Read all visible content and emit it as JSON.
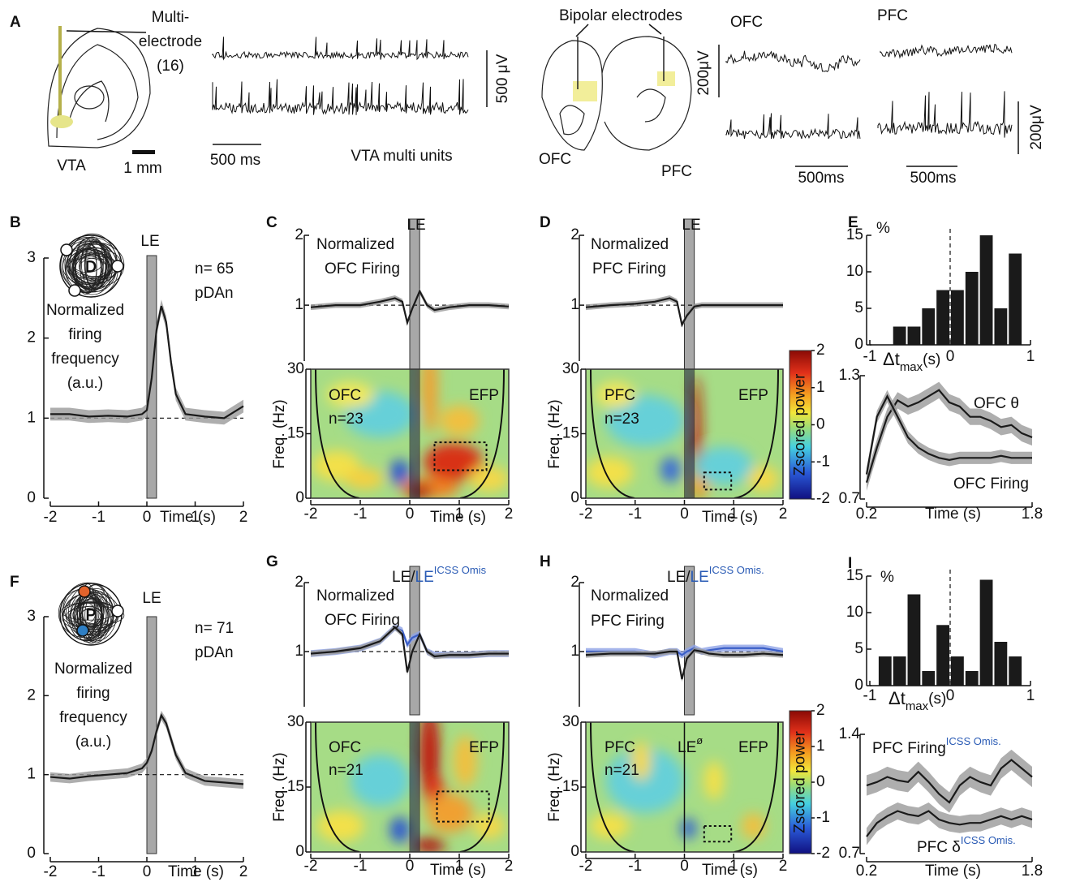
{
  "figure_a": {
    "panel": "A",
    "electrode": [
      "Multi-",
      "electrode",
      "(16)"
    ],
    "region": "VTA",
    "scale_mm": "1 mm",
    "scale_uv": "500 μV",
    "scale_ms": "500 ms",
    "units": "VTA multi units",
    "bipolar": "Bipolar electrodes",
    "slice_left": "OFC",
    "slice_right": "PFC",
    "trace_left": "OFC",
    "trace_right": "PFC",
    "scale_uv_top": "200μV",
    "scale_uv_bottom": "200μV",
    "scale_ms_left": "500ms",
    "scale_ms_right": "500ms"
  },
  "chart_data": [
    {
      "type": "line",
      "panel": "B",
      "event_label": "LE",
      "event": [
        0,
        0.2
      ],
      "annotations": [
        "n= 65",
        "pDAn"
      ],
      "ylabel": [
        "Normalized",
        "firing",
        "frequency",
        "(a.u.)"
      ],
      "xlabel": "Time (s)",
      "icon_label": "D",
      "xlim": [
        -2,
        2
      ],
      "xticks": [
        -2,
        -1,
        0,
        1,
        2
      ],
      "ylim": [
        0,
        3
      ],
      "yticks": [
        0,
        1,
        2,
        3
      ],
      "hline": 1,
      "x": [
        -2,
        -1.6,
        -1.2,
        -0.8,
        -0.4,
        -0.1,
        0,
        0.1,
        0.2,
        0.3,
        0.4,
        0.5,
        0.6,
        0.8,
        1.2,
        1.6,
        2
      ],
      "series": [
        {
          "color": "#1a1a1a",
          "band_color": "#9a9a9a",
          "error": 0.08,
          "values": [
            1.05,
            1.05,
            1.02,
            1.03,
            1.02,
            1.05,
            1.1,
            1.5,
            2.1,
            2.4,
            2.2,
            1.7,
            1.3,
            1.05,
            1.02,
            1.0,
            1.15
          ]
        }
      ]
    },
    {
      "type": "line",
      "panel": "C",
      "event_label": "LE",
      "event": [
        0,
        0.2
      ],
      "annotations": [
        "Normalized",
        "OFC Firing"
      ],
      "xlim": [
        -2,
        2
      ],
      "ylim": [
        0.2,
        2
      ],
      "yticks": [
        1,
        2
      ],
      "hline": 1,
      "x": [
        -2,
        -1.5,
        -1,
        -0.6,
        -0.3,
        -0.15,
        -0.05,
        0.05,
        0.2,
        0.35,
        0.5,
        0.8,
        1.2,
        1.6,
        2
      ],
      "series": [
        {
          "color": "#1a1a1a",
          "band_color": "#9a9a9a",
          "error": 0.04,
          "values": [
            0.97,
            1.0,
            1.0,
            1.05,
            1.1,
            1.05,
            0.75,
            0.95,
            1.2,
            1.0,
            0.93,
            0.97,
            1.0,
            1.0,
            0.98
          ]
        }
      ]
    },
    {
      "type": "heatmap",
      "annotations": [
        "OFC",
        "n=23",
        "EFP"
      ],
      "ylabel": "Freq. (Hz)",
      "xlabel": "Time (s)",
      "xlim": [
        -2,
        2
      ],
      "xticks": [
        -2,
        -1,
        0,
        1,
        2
      ],
      "ylim": [
        0,
        30
      ],
      "yticks": [
        0,
        15,
        30
      ],
      "event": [
        0,
        0.2
      ],
      "box": {
        "x": [
          0.5,
          1.55
        ],
        "y": [
          6.5,
          13
        ]
      }
    },
    {
      "type": "line",
      "panel": "D",
      "event_label": "LE",
      "event": [
        0,
        0.2
      ],
      "annotations": [
        "Normalized",
        "PFC Firing"
      ],
      "xlim": [
        -2,
        2
      ],
      "ylim": [
        0.2,
        2
      ],
      "yticks": [
        1,
        2
      ],
      "hline": 1,
      "x": [
        -2,
        -1.5,
        -1,
        -0.6,
        -0.3,
        -0.15,
        -0.05,
        0.05,
        0.2,
        0.35,
        0.5,
        0.8,
        1.2,
        1.6,
        2
      ],
      "series": [
        {
          "color": "#1a1a1a",
          "band_color": "#9a9a9a",
          "error": 0.04,
          "values": [
            0.97,
            1.0,
            1.02,
            1.05,
            1.1,
            1.05,
            0.72,
            0.85,
            0.98,
            1.0,
            1.0,
            1.0,
            1.0,
            1.0,
            1.0
          ]
        }
      ]
    },
    {
      "type": "heatmap",
      "annotations": [
        "PFC",
        "n=23",
        "EFP"
      ],
      "ylabel": "Freq. (Hz)",
      "xlabel": "Time (s)",
      "xlim": [
        -2,
        2
      ],
      "xticks": [
        -2,
        -1,
        0,
        1,
        2
      ],
      "ylim": [
        0,
        30
      ],
      "yticks": [
        0,
        15,
        30
      ],
      "event": [
        0,
        0.2
      ],
      "box": {
        "x": [
          0.4,
          0.95
        ],
        "y": [
          2,
          6
        ]
      },
      "zlabel": "Zscored power",
      "zlim": [
        -2,
        2
      ],
      "zticks": [
        -2,
        -1,
        0,
        1,
        2
      ]
    },
    {
      "type": "histogram",
      "panel": "E",
      "ylabel": "%",
      "xlabel": "Δt",
      "xlabel_sub": "max",
      "xlabel_end": "(s)",
      "xlim": [
        -1,
        1
      ],
      "xticks": [
        -1,
        0,
        1
      ],
      "ylim": [
        0,
        15
      ],
      "yticks": [
        0,
        5,
        10,
        15
      ],
      "vline": 0,
      "color": "#1a1a1a",
      "bins": [
        -0.72,
        -0.54,
        -0.36,
        -0.18,
        0,
        0.18,
        0.36,
        0.54,
        0.72,
        0.9
      ],
      "values": [
        2.5,
        2.5,
        5,
        7.5,
        7.5,
        10,
        15,
        5,
        12.5
      ]
    },
    {
      "type": "line",
      "xlabel": "Time (s)",
      "xlim": [
        0.2,
        1.8
      ],
      "xticks": [
        0.2,
        1.8
      ],
      "ylim": [
        0.7,
        1.3
      ],
      "yticks": [
        0.7,
        1.3
      ],
      "x": [
        0.2,
        0.3,
        0.4,
        0.5,
        0.6,
        0.7,
        0.8,
        0.9,
        1.0,
        1.1,
        1.2,
        1.3,
        1.4,
        1.5,
        1.6,
        1.7,
        1.8
      ],
      "series": [
        {
          "name": "OFC θ",
          "color": "#1a1a1a",
          "band_color": "#9a9a9a",
          "error": 0.04,
          "values": [
            0.78,
            0.95,
            1.1,
            1.18,
            1.15,
            1.17,
            1.2,
            1.23,
            1.17,
            1.15,
            1.1,
            1.1,
            1.08,
            1.05,
            1.06,
            1.02,
            1.0
          ]
        },
        {
          "name": "OFC Firing",
          "color": "#1a1a1a",
          "band_color": "#9a9a9a",
          "error": 0.03,
          "values": [
            0.82,
            1.1,
            1.2,
            1.1,
            1.0,
            0.95,
            0.92,
            0.9,
            0.89,
            0.9,
            0.9,
            0.9,
            0.9,
            0.91,
            0.9,
            0.9,
            0.9
          ]
        }
      ]
    },
    {
      "type": "line",
      "panel": "F",
      "event_label": "LE",
      "event": [
        0,
        0.2
      ],
      "annotations": [
        "n= 71",
        "pDAn"
      ],
      "ylabel": [
        "Normalized",
        "firing",
        "frequency",
        "(a.u.)"
      ],
      "xlabel": "Time (s)",
      "icon_label": "P",
      "xlim": [
        -2,
        2
      ],
      "xticks": [
        -2,
        -1,
        0,
        1,
        2
      ],
      "ylim": [
        0,
        3
      ],
      "yticks": [
        0,
        1,
        2,
        3
      ],
      "hline": 1,
      "x": [
        -2,
        -1.6,
        -1.2,
        -0.8,
        -0.4,
        -0.1,
        0,
        0.1,
        0.2,
        0.3,
        0.4,
        0.5,
        0.6,
        0.8,
        1.2,
        1.6,
        2
      ],
      "series": [
        {
          "color": "#1a1a1a",
          "band_color": "#9a9a9a",
          "error": 0.06,
          "values": [
            0.97,
            0.95,
            0.98,
            1.0,
            1.02,
            1.08,
            1.15,
            1.3,
            1.55,
            1.75,
            1.65,
            1.45,
            1.25,
            1.02,
            0.92,
            0.9,
            0.88
          ]
        }
      ]
    },
    {
      "type": "line",
      "panel": "G",
      "event_label": "LE/",
      "event_label2": "LE",
      "event_label2_sup": "ICSS Omis",
      "event_label2_color": "#2a5bb5",
      "event": [
        0,
        0.2
      ],
      "annotations": [
        "Normalized",
        "OFC Firing"
      ],
      "xlim": [
        -2,
        2
      ],
      "ylim": [
        0.2,
        2
      ],
      "yticks": [
        1,
        2
      ],
      "hline": 1,
      "x": [
        -2,
        -1.5,
        -1,
        -0.6,
        -0.3,
        -0.15,
        -0.05,
        0.05,
        0.2,
        0.35,
        0.5,
        0.8,
        1.2,
        1.6,
        2
      ],
      "series": [
        {
          "color": "#3b5fc8",
          "band_color": "#8ea3e6",
          "error": 0.05,
          "values": [
            0.97,
            1.0,
            1.05,
            1.15,
            1.35,
            1.3,
            1.1,
            1.2,
            1.25,
            1.0,
            0.95,
            0.95,
            0.95,
            0.97,
            0.97
          ]
        },
        {
          "color": "#1a1a1a",
          "band_color": "#9a9a9a",
          "error": 0.04,
          "values": [
            0.97,
            1.0,
            1.05,
            1.15,
            1.35,
            1.25,
            0.7,
            1.0,
            1.25,
            1.0,
            0.93,
            0.95,
            0.95,
            0.97,
            0.97
          ]
        }
      ]
    },
    {
      "type": "heatmap",
      "annotations": [
        "OFC",
        "n=21",
        "EFP"
      ],
      "ylabel": "Freq. (Hz)",
      "xlabel": "Time (s)",
      "xlim": [
        -2,
        2
      ],
      "xticks": [
        -2,
        -1,
        0,
        1,
        2
      ],
      "ylim": [
        0,
        30
      ],
      "yticks": [
        0,
        15,
        30
      ],
      "event": [
        0,
        0.2
      ],
      "box": {
        "x": [
          0.55,
          1.6
        ],
        "y": [
          7,
          14
        ]
      }
    },
    {
      "type": "line",
      "panel": "H",
      "event_label": "LE/",
      "event_label2": "LE",
      "event_label2_sup": "ICSS Omis.",
      "event_label2_color": "#2a5bb5",
      "event": [
        0,
        0.2
      ],
      "annotations": [
        "Normalized",
        "PFC Firing"
      ],
      "xlim": [
        -2,
        2
      ],
      "ylim": [
        0.2,
        2
      ],
      "yticks": [
        1,
        2
      ],
      "hline": 1,
      "x": [
        -2,
        -1.5,
        -1,
        -0.6,
        -0.3,
        -0.15,
        -0.05,
        0.05,
        0.2,
        0.35,
        0.5,
        0.8,
        1.2,
        1.6,
        2
      ],
      "series": [
        {
          "color": "#3b5fc8",
          "band_color": "#8ea3e6",
          "error": 0.05,
          "values": [
            1.0,
            1.0,
            1.0,
            0.95,
            1.0,
            1.0,
            0.95,
            1.0,
            1.05,
            1.0,
            1.02,
            1.05,
            1.05,
            1.05,
            1.0
          ]
        },
        {
          "color": "#1a1a1a",
          "band_color": "#9a9a9a",
          "error": 0.04,
          "values": [
            0.95,
            0.97,
            0.97,
            0.97,
            1.0,
            1.0,
            0.6,
            0.9,
            1.02,
            1.0,
            0.97,
            0.95,
            0.95,
            0.97,
            0.95
          ]
        }
      ]
    },
    {
      "type": "heatmap",
      "annotations": [
        "PFC",
        "n=21",
        "EFP"
      ],
      "event_text": "LE",
      "event_sup": "ø",
      "event_line": 0,
      "ylabel": "Freq. (Hz)",
      "xlabel": "Time (s)",
      "xlim": [
        -2,
        2
      ],
      "xticks": [
        -2,
        -1,
        0,
        1,
        2
      ],
      "ylim": [
        0,
        30
      ],
      "yticks": [
        0,
        15,
        30
      ],
      "box": {
        "x": [
          0.4,
          0.95
        ],
        "y": [
          2.4,
          6
        ]
      },
      "zlabel": "Zscored power",
      "zlim": [
        -2,
        2
      ],
      "zticks": [
        -2,
        -1,
        0,
        1,
        2
      ]
    },
    {
      "type": "histogram",
      "panel": "I",
      "ylabel": "%",
      "xlabel": "Δt",
      "xlabel_sub": "max",
      "xlabel_end": "(s)",
      "xlim": [
        -1,
        1
      ],
      "xticks": [
        -1,
        0,
        1
      ],
      "ylim": [
        0,
        15
      ],
      "yticks": [
        0,
        5,
        10,
        15
      ],
      "vline": 0,
      "color": "#1a1a1a",
      "bins": [
        -0.9,
        -0.72,
        -0.54,
        -0.36,
        -0.18,
        0,
        0.18,
        0.36,
        0.54,
        0.72,
        0.9
      ],
      "values": [
        4,
        4,
        12.5,
        2,
        8.3,
        4,
        2,
        14.5,
        6,
        4
      ]
    },
    {
      "type": "line",
      "xlabel": "Time (s)",
      "xlim": [
        0.2,
        1.8
      ],
      "xticks": [
        0.2,
        1.8
      ],
      "ylim": [
        0.7,
        1.4
      ],
      "yticks": [
        0.7,
        1.4
      ],
      "sup_color": "#2a5bb5",
      "x": [
        0.2,
        0.3,
        0.4,
        0.5,
        0.6,
        0.7,
        0.8,
        0.9,
        1.0,
        1.1,
        1.2,
        1.3,
        1.4,
        1.5,
        1.6,
        1.7,
        1.8
      ],
      "series": [
        {
          "name": "PFC Firing",
          "name_sup": "ICSS Omis.",
          "color": "#1a1a1a",
          "band_color": "#9a9a9a",
          "error": 0.06,
          "values": [
            1.1,
            1.12,
            1.15,
            1.13,
            1.12,
            1.18,
            1.12,
            1.05,
            1.0,
            1.1,
            1.15,
            1.12,
            1.1,
            1.2,
            1.25,
            1.2,
            1.15
          ]
        },
        {
          "name": "PFC δ",
          "name_sup": "ICSS Omis.",
          "color": "#1a1a1a",
          "band_color": "#9a9a9a",
          "error": 0.05,
          "values": [
            0.8,
            0.88,
            0.92,
            0.95,
            0.93,
            0.92,
            0.95,
            0.9,
            0.88,
            0.87,
            0.88,
            0.88,
            0.9,
            0.92,
            0.9,
            0.92,
            0.9
          ]
        }
      ]
    }
  ]
}
